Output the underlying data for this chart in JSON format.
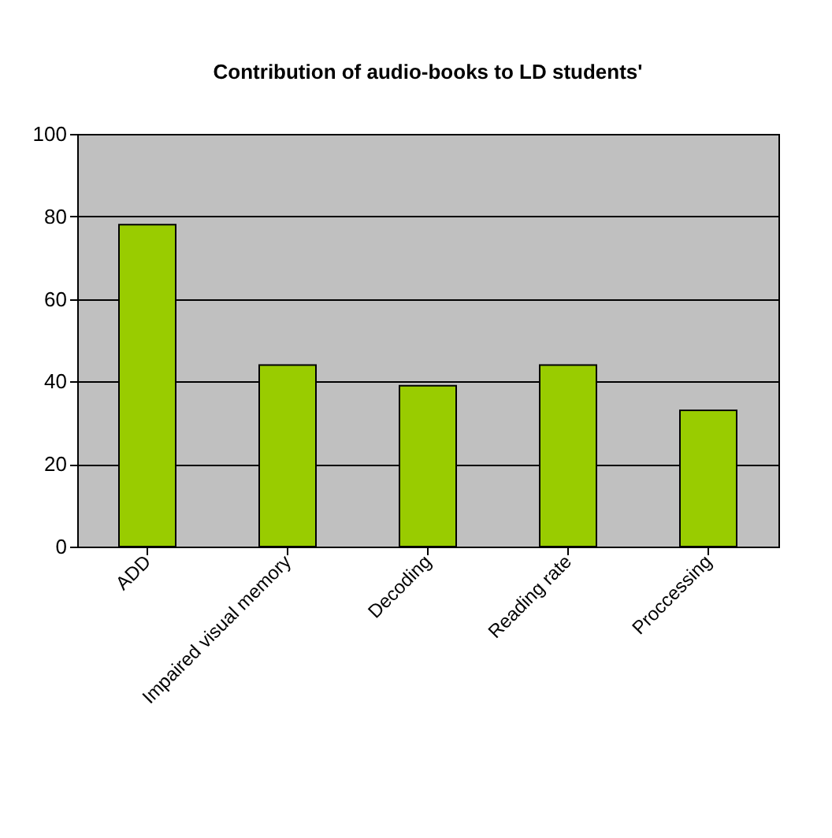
{
  "chart_data": {
    "type": "bar",
    "title": "Contribution of audio-books to LD students'",
    "categories": [
      "ADD",
      "Impaired visual memory",
      "Decoding",
      "Reading rate",
      "Proccessing"
    ],
    "values": [
      78,
      44,
      39,
      44,
      33
    ],
    "color": "#99cc00",
    "ylim": [
      0,
      100
    ],
    "yticks": [
      0,
      20,
      40,
      60,
      80,
      100
    ],
    "grid": "y"
  }
}
